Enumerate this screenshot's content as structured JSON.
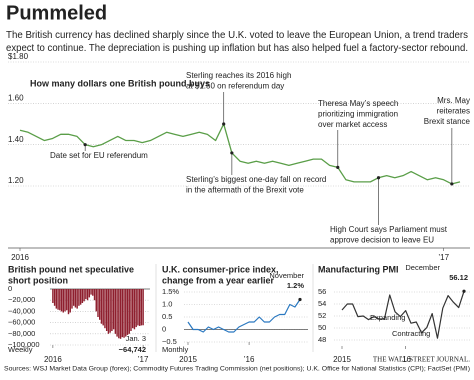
{
  "header": {
    "title": "Pummeled",
    "subtitle": [
      "The British currency has declined sharply since the U.K. voted to leave the European Union, a trend traders",
      "expect to continue. The depreciation is pushing up inflation but has also helped fuel a factory-sector rebound."
    ]
  },
  "chart_data": [
    {
      "type": "line",
      "title": "How many dollars one British pound buys",
      "color": "#5a9e48",
      "categories": [
        "2016",
        null,
        null,
        null,
        null,
        null,
        null,
        null,
        null,
        null,
        null,
        null,
        null,
        null,
        null,
        null,
        null,
        null,
        null,
        null,
        null,
        null,
        null,
        null,
        null,
        null,
        null,
        null,
        null,
        null,
        null,
        null,
        null,
        null,
        null,
        null,
        null,
        null,
        null,
        null,
        null,
        null,
        null,
        null,
        null,
        null,
        null,
        null,
        null,
        null,
        null,
        null,
        "’17",
        null,
        null
      ],
      "values": [
        1.47,
        1.46,
        1.44,
        1.42,
        1.43,
        1.45,
        1.45,
        1.44,
        1.4,
        1.39,
        1.4,
        1.42,
        1.44,
        1.42,
        1.42,
        1.41,
        1.42,
        1.44,
        1.46,
        1.45,
        1.44,
        1.45,
        1.46,
        1.45,
        1.42,
        1.5,
        1.36,
        1.32,
        1.31,
        1.32,
        1.31,
        1.32,
        1.31,
        1.3,
        1.31,
        1.32,
        1.33,
        1.33,
        1.3,
        1.29,
        1.23,
        1.22,
        1.22,
        1.22,
        1.24,
        1.25,
        1.24,
        1.25,
        1.27,
        1.25,
        1.23,
        1.24,
        1.23,
        1.21,
        1.22
      ],
      "ylim": [
        0.9,
        1.8
      ],
      "yticks": [
        {
          "value": 1.8,
          "label": "$1.80"
        },
        {
          "value": 1.6,
          "label": "1.60"
        },
        {
          "value": 1.4,
          "label": "1.40"
        },
        {
          "value": 1.2,
          "label": "1.20"
        }
      ],
      "grid": true,
      "annotations": [
        [
          "Date set for EU referendum"
        ],
        [
          "Sterling reaches its 2016 high",
          "at $1.50 on referendum day"
        ],
        [
          "Sterling’s biggest one-day fall on record",
          "in the aftermath of the Brexit vote"
        ],
        [
          "Theresa May’s speech",
          "prioritizing immigration",
          "over market access"
        ],
        [
          "High Court says Parliament must",
          "approve decision to leave EU"
        ],
        [
          "Mrs. May",
          "reiterates",
          "Brexit stance"
        ]
      ]
    },
    {
      "type": "bar",
      "title": [
        "British pound net speculative",
        "short position"
      ],
      "color": "#8e1f2e",
      "note": "Weekly",
      "categories": [
        "2016",
        null,
        null,
        null,
        null,
        null,
        null,
        null,
        null,
        null,
        null,
        null,
        null,
        null,
        null,
        null,
        null,
        null,
        null,
        null,
        null,
        null,
        null,
        null,
        null,
        null,
        null,
        null,
        null,
        null,
        null,
        null,
        null,
        null,
        null,
        null,
        null,
        null,
        null,
        null,
        null,
        null,
        null,
        null,
        null,
        null,
        null,
        null,
        null,
        null,
        null,
        null,
        "’17"
      ],
      "values": [
        -25000,
        -30000,
        -35000,
        -37000,
        -38000,
        -40000,
        -42000,
        -40000,
        -38000,
        -45000,
        -42000,
        -35000,
        -30000,
        -33000,
        -35000,
        -30000,
        -28000,
        -25000,
        -22000,
        -18000,
        -20000,
        -15000,
        -10000,
        -12000,
        -20000,
        -40000,
        -50000,
        -55000,
        -62000,
        -65000,
        -70000,
        -75000,
        -80000,
        -78000,
        -75000,
        -72000,
        -80000,
        -85000,
        -88000,
        -89000,
        -86000,
        -87000,
        -85000,
        -82000,
        -80000,
        -75000,
        -70000,
        -72000,
        -68000,
        -65000,
        -66000,
        -65000,
        -64742
      ],
      "value_labels": [
        null,
        null,
        null,
        null,
        null,
        null,
        null,
        null,
        null,
        null,
        null,
        null,
        null,
        null,
        null,
        null,
        null,
        null,
        null,
        null,
        null,
        null,
        null,
        null,
        null,
        null,
        null,
        null,
        null,
        null,
        null,
        null,
        null,
        null,
        null,
        null,
        null,
        null,
        null,
        null,
        null,
        null,
        null,
        null,
        null,
        null,
        null,
        null,
        null,
        null,
        null,
        null,
        "−64,742"
      ],
      "ylim": [
        -100000,
        0
      ],
      "yticks": [
        0,
        {
          "value": -20000,
          "label": "−20,000"
        },
        {
          "value": -40000,
          "label": "−40,000"
        },
        {
          "value": -60000,
          "label": "−60,000"
        },
        {
          "value": -80000,
          "label": "−80,000"
        },
        {
          "value": -100000,
          "label": "−100,000"
        }
      ],
      "grid": true,
      "annotations": [
        [
          "Jan. 3"
        ]
      ]
    },
    {
      "type": "line",
      "title": [
        "U.K. consumer-price index,",
        "change from a year earlier"
      ],
      "color": "#2a78c0",
      "note": "Monthly",
      "categories": [
        "2015",
        null,
        null,
        null,
        null,
        null,
        null,
        null,
        null,
        null,
        null,
        null,
        "’16",
        null,
        null,
        null,
        null,
        null,
        null,
        null,
        null,
        null,
        null
      ],
      "values": [
        0.3,
        0.0,
        0.0,
        -0.1,
        0.1,
        0.0,
        0.1,
        0.0,
        -0.1,
        -0.1,
        0.1,
        0.2,
        0.3,
        0.3,
        0.5,
        0.3,
        0.3,
        0.5,
        0.6,
        0.6,
        1.0,
        0.9,
        1.2
      ],
      "value_labels": [
        null,
        null,
        null,
        null,
        null,
        null,
        null,
        null,
        null,
        null,
        null,
        null,
        null,
        null,
        null,
        null,
        null,
        null,
        null,
        null,
        null,
        null,
        "1.2%"
      ],
      "ylim": [
        -0.5,
        1.5
      ],
      "yticks": [
        {
          "value": 1.5,
          "label": "1.5%"
        },
        {
          "value": 1.0,
          "label": "1.0"
        },
        0.5,
        0,
        {
          "value": -0.5,
          "label": "−0.5"
        }
      ],
      "grid": true,
      "annotations": [
        [
          "November"
        ]
      ]
    },
    {
      "type": "line",
      "title": [
        "Manufacturing PMI"
      ],
      "color": "#333333",
      "categories": [
        "2015",
        null,
        null,
        null,
        null,
        null,
        null,
        null,
        null,
        null,
        null,
        null,
        "’16",
        null,
        null,
        null,
        null,
        null,
        null,
        null,
        null,
        null,
        null,
        null
      ],
      "values": [
        53.0,
        54.0,
        54.0,
        51.9,
        52.0,
        51.4,
        51.9,
        51.5,
        51.5,
        55.5,
        52.7,
        51.9,
        52.9,
        50.8,
        51.0,
        49.2,
        50.1,
        52.4,
        48.3,
        53.3,
        55.4,
        54.3,
        53.4,
        56.12
      ],
      "ylim": [
        47,
        57
      ],
      "yticks": [
        56,
        54,
        52,
        50,
        48
      ],
      "grid": true,
      "annotations": [
        [
          "December"
        ],
        [
          "Expanding"
        ],
        [
          "Contracting"
        ]
      ]
    }
  ],
  "footer": {
    "source": "Sources: WSJ Market Data Group (forex); Commodity Futures Trading Commission (net positions); U.K. Office for National Statistics (CPI); FactSet (PMI)",
    "credit": "THE WALL STREET JOURNAL."
  }
}
